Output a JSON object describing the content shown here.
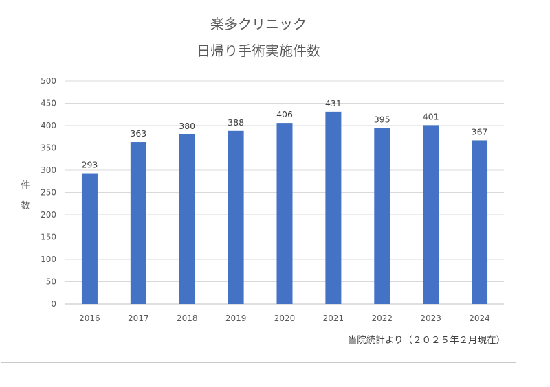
{
  "chart_data": {
    "type": "bar",
    "title": "楽多クリニック",
    "subtitle": "日帰り手術実施件数",
    "ylabel": "件数",
    "xlabel": "",
    "categories": [
      "2016",
      "2017",
      "2018",
      "2019",
      "2020",
      "2021",
      "2022",
      "2023",
      "2024"
    ],
    "values": [
      293,
      363,
      380,
      388,
      406,
      431,
      395,
      401,
      367
    ],
    "ylim": [
      0,
      500
    ],
    "yticks": [
      0,
      50,
      100,
      150,
      200,
      250,
      300,
      350,
      400,
      450,
      500
    ],
    "grid": true,
    "bar_color": "#4472c4",
    "data_labels": true,
    "note": "当院統計より（２０２５年２月現在）"
  }
}
